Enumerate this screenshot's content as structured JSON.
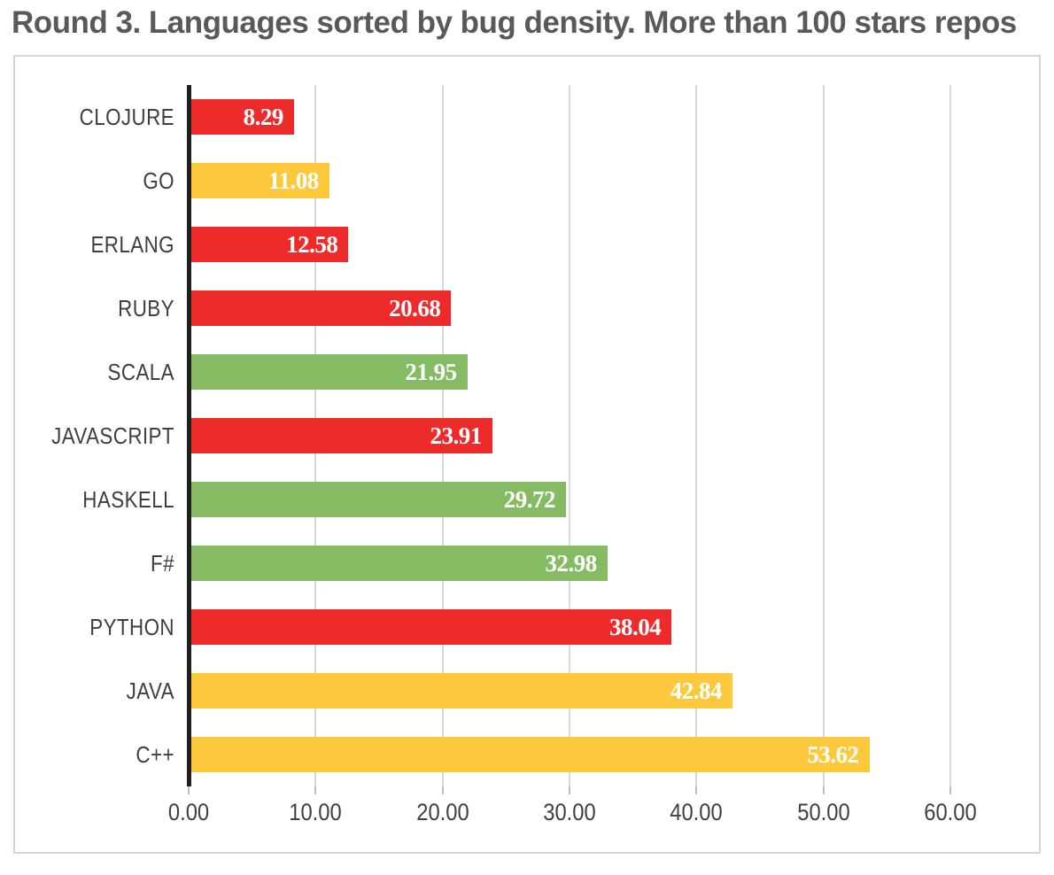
{
  "title": "Round 3. Languages sorted by bug density. More than 100 stars repos",
  "chart_data": {
    "type": "bar",
    "orientation": "horizontal",
    "title": "Round 3. Languages sorted by bug density. More than 100 stars repos",
    "categories": [
      "CLOJURE",
      "GO",
      "ERLANG",
      "RUBY",
      "SCALA",
      "JAVASCRIPT",
      "HASKELL",
      "F#",
      "PYTHON",
      "JAVA",
      "C++"
    ],
    "values": [
      8.29,
      11.08,
      12.58,
      20.68,
      21.95,
      23.91,
      29.72,
      32.98,
      38.04,
      42.84,
      53.62
    ],
    "value_labels": [
      "8.29",
      "11.08",
      "12.58",
      "20.68",
      "21.95",
      "23.91",
      "29.72",
      "32.98",
      "38.04",
      "42.84",
      "53.62"
    ],
    "bar_colors": [
      "red",
      "yellow",
      "red",
      "red",
      "green",
      "red",
      "green",
      "green",
      "red",
      "yellow",
      "yellow"
    ],
    "color_map": {
      "red": "#ee2a2b",
      "yellow": "#fcc93d",
      "green": "#85bb62"
    },
    "value_label_color": "#ffffff",
    "xlabel": "",
    "ylabel": "",
    "xlim": [
      0,
      60
    ],
    "x_ticks": [
      "0.00",
      "10.00",
      "20.00",
      "30.00",
      "40.00",
      "50.00",
      "60.00"
    ],
    "x_tick_values": [
      0,
      10,
      20,
      30,
      40,
      50,
      60
    ],
    "grid": "vertical-on",
    "legend": "none",
    "gridline_color": "#d9d9d9",
    "axis_line_color": "#1f1f1f",
    "category_label_color": "#3f3f3f",
    "tick_label_color": "#404040"
  }
}
